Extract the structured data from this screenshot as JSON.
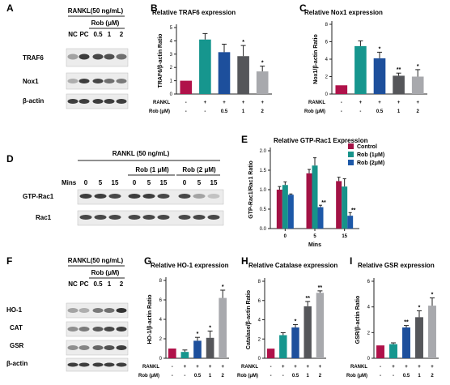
{
  "colors": {
    "nc": "#b0124a",
    "pc": "#16968e",
    "rob05": "#1d4f9c",
    "rob1": "#55565a",
    "rob2": "#a8a9ad",
    "control": "#a31245",
    "rob1uM": "#17938a",
    "rob2uM": "#1d58a8",
    "blot_bg": "#ececec",
    "band": "#1e1e1e"
  },
  "blots": {
    "A": {
      "letter": "A",
      "treatment": "RANKL(50 ng/mL)",
      "dose_header": "Rob (μM)",
      "lanes": [
        "NC",
        "PC",
        "0.5",
        "1",
        "2"
      ],
      "proteins": [
        "TRAF6",
        "Nox1",
        "β-actin"
      ]
    },
    "D": {
      "letter": "D",
      "treatment": "RANKL (50 ng/mL)",
      "group_labels": [
        "Rob (1 μM)",
        "Rob (2 μM)"
      ],
      "mins_label": "Mins",
      "lanes": [
        "0",
        "5",
        "15",
        "0",
        "5",
        "15",
        "0",
        "5",
        "15"
      ],
      "proteins": [
        "GTP-Rac1",
        "Rac1"
      ]
    },
    "F": {
      "letter": "F",
      "treatment": "RANKL(50 ng/mL)",
      "dose_header": "Rob (μM)",
      "lanes": [
        "NC",
        "PC",
        "0.5",
        "1",
        "2"
      ],
      "proteins": [
        "HO-1",
        "CAT",
        "GSR",
        "β-actin"
      ]
    }
  },
  "chart_data": [
    {
      "id": "B",
      "letter": "B",
      "type": "bar",
      "title": "Relative TRAF6 expression",
      "ylabel": "TRAF6/β-actin Ratio",
      "ylim": [
        0,
        5
      ],
      "yticks": [
        0,
        1,
        2,
        3,
        4,
        5
      ],
      "categories": [
        "NC",
        "PC",
        "0.5",
        "1",
        "2"
      ],
      "values": [
        1.0,
        4.1,
        3.15,
        2.85,
        1.7
      ],
      "errors": [
        0,
        0.45,
        0.6,
        0.8,
        0.4
      ],
      "significance": [
        "",
        "",
        "",
        "*",
        "*"
      ],
      "rows": [
        {
          "label": "RANKL",
          "cells": [
            "-",
            "+",
            "+",
            "+",
            "+"
          ]
        },
        {
          "label": "Rob (μM)",
          "cells": [
            "-",
            "-",
            "0.5",
            "1",
            "2"
          ]
        }
      ]
    },
    {
      "id": "C",
      "letter": "C",
      "type": "bar",
      "title": "Relative Nox1 expression",
      "ylabel": "Nox1/β-actin Ratio",
      "ylim": [
        0,
        8
      ],
      "yticks": [
        0,
        2,
        4,
        6,
        8
      ],
      "categories": [
        "NC",
        "PC",
        "0.5",
        "1",
        "2"
      ],
      "values": [
        1.0,
        5.5,
        4.1,
        2.1,
        2.0
      ],
      "errors": [
        0,
        0.6,
        0.7,
        0.3,
        0.8
      ],
      "significance": [
        "",
        "",
        "*",
        "**",
        "*"
      ],
      "rows": [
        {
          "label": "RANKL",
          "cells": [
            "-",
            "+",
            "+",
            "+",
            "+"
          ]
        },
        {
          "label": "Rob (μM)",
          "cells": [
            "-",
            "-",
            "0.5",
            "1",
            "2"
          ]
        }
      ]
    },
    {
      "id": "E",
      "letter": "E",
      "type": "bar",
      "title": "Relative GTP-Rac1 Expression",
      "ylabel": "GTP-Rac1/Rac1 Ratio",
      "xlabel": "Mins",
      "ylim": [
        0,
        2.0
      ],
      "yticks": [
        0.0,
        0.5,
        1.0,
        1.5,
        2.0
      ],
      "categories": [
        "0",
        "5",
        "15"
      ],
      "series": [
        {
          "name": "Control",
          "values": [
            1.0,
            1.42,
            1.22
          ],
          "errors": [
            0.08,
            0.1,
            0.1
          ],
          "significance": [
            "",
            "",
            ""
          ]
        },
        {
          "name": "Rob (1μM)",
          "values": [
            1.12,
            1.62,
            1.08
          ],
          "errors": [
            0.08,
            0.2,
            0.2
          ],
          "significance": [
            "",
            "",
            ""
          ]
        },
        {
          "name": "Rob (2μM)",
          "values": [
            0.87,
            0.55,
            0.33
          ],
          "errors": [
            0.02,
            0.05,
            0.08
          ],
          "significance": [
            "",
            "**",
            "**"
          ]
        }
      ]
    },
    {
      "id": "G",
      "letter": "G",
      "type": "bar",
      "title": "Relative HO-1 expression",
      "ylabel": "HO-1/β-actin Ratio",
      "ylim": [
        0,
        8
      ],
      "yticks": [
        0,
        2,
        4,
        6,
        8
      ],
      "categories": [
        "NC",
        "PC",
        "0.5",
        "1",
        "2"
      ],
      "values": [
        1.0,
        0.65,
        1.8,
        2.1,
        6.2
      ],
      "errors": [
        0,
        0.2,
        0.35,
        0.7,
        0.8
      ],
      "significance": [
        "",
        "",
        "*",
        "*",
        "*"
      ],
      "rows": [
        {
          "label": "RANKL",
          "cells": [
            "-",
            "+",
            "+",
            "+",
            "+"
          ]
        },
        {
          "label": "Rob (μM)",
          "cells": [
            "-",
            "-",
            "0.5",
            "1",
            "2"
          ]
        }
      ]
    },
    {
      "id": "H",
      "letter": "H",
      "type": "bar",
      "title": "Relative Catalase expression",
      "ylabel": "Catalase/β-actin Ratio",
      "ylim": [
        0,
        8
      ],
      "yticks": [
        0,
        2,
        4,
        6,
        8
      ],
      "categories": [
        "NC",
        "PC",
        "0.5",
        "1",
        "2"
      ],
      "values": [
        1.0,
        2.4,
        3.2,
        5.4,
        6.8
      ],
      "errors": [
        0,
        0.25,
        0.3,
        0.5,
        0.2
      ],
      "significance": [
        "",
        "",
        "*",
        "**",
        "**"
      ],
      "rows": [
        {
          "label": "RANKL",
          "cells": [
            "-",
            "+",
            "+",
            "+",
            "+"
          ]
        },
        {
          "label": "Rob (μM)",
          "cells": [
            "-",
            "-",
            "0.5",
            "1",
            "2"
          ]
        }
      ]
    },
    {
      "id": "I",
      "letter": "I",
      "type": "bar",
      "title": "Relative GSR expression",
      "ylabel": "GSR/β-actin Ratio",
      "ylim": [
        0,
        6
      ],
      "yticks": [
        0,
        2,
        4,
        6
      ],
      "categories": [
        "NC",
        "PC",
        "0.5",
        "1",
        "2"
      ],
      "values": [
        1.0,
        1.1,
        2.4,
        3.2,
        4.1
      ],
      "errors": [
        0,
        0.1,
        0.15,
        0.5,
        0.6
      ],
      "significance": [
        "",
        "",
        "**",
        "*",
        "*"
      ],
      "rows": [
        {
          "label": "RANKL",
          "cells": [
            "-",
            "+",
            "+",
            "+",
            "+"
          ]
        },
        {
          "label": "Rob (μM)",
          "cells": [
            "-",
            "-",
            "0.5",
            "1",
            "2"
          ]
        }
      ]
    }
  ]
}
